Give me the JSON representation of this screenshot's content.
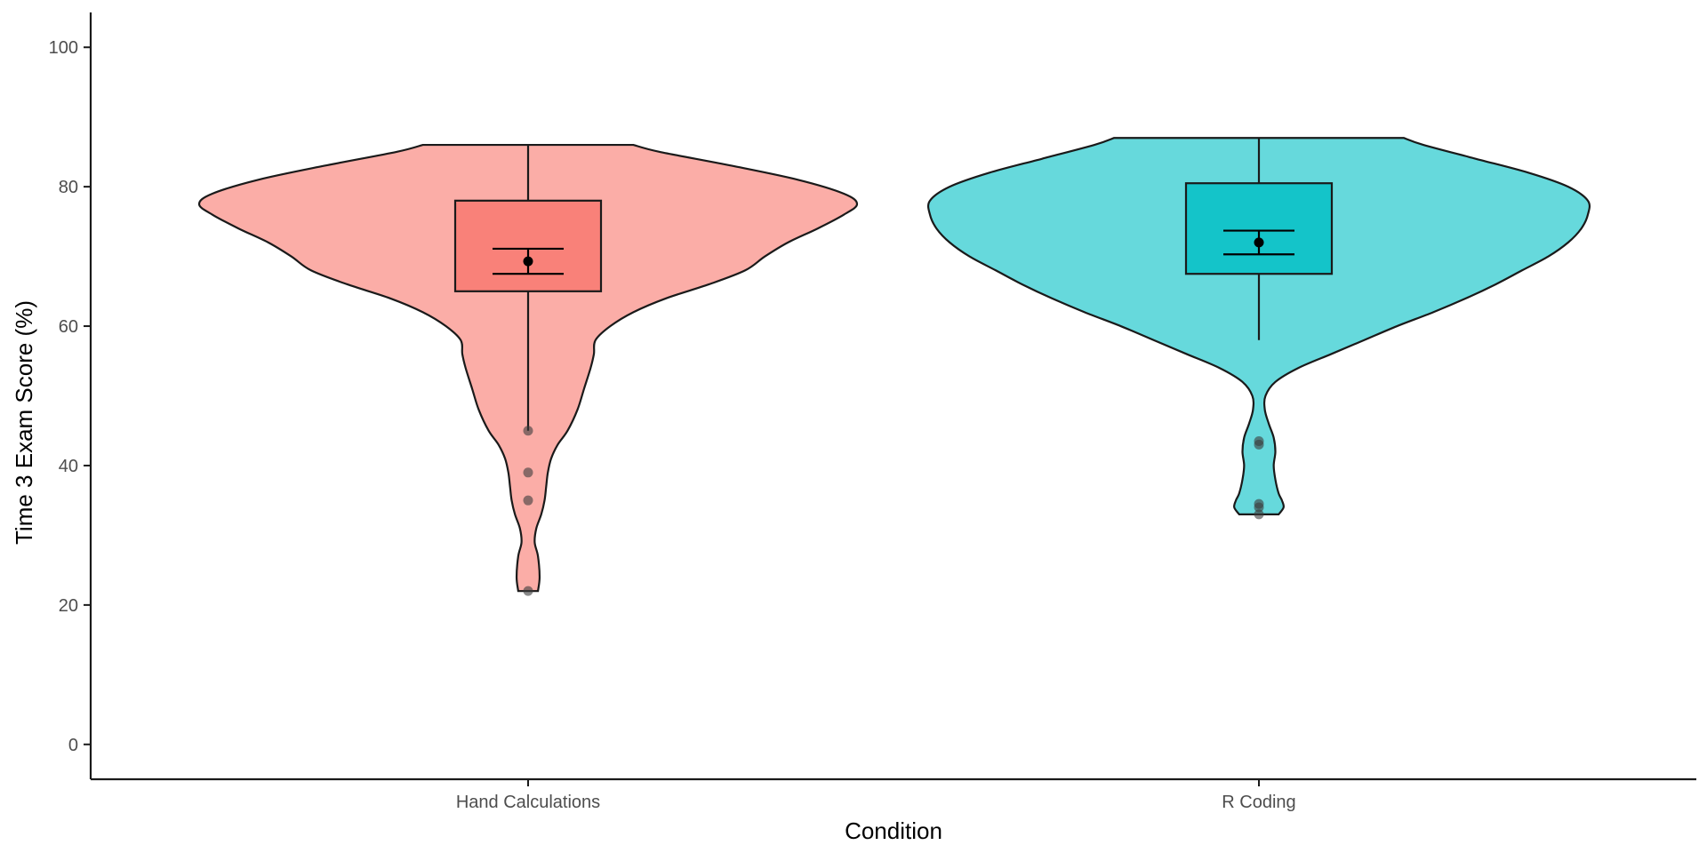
{
  "chart_data": {
    "type": "violin",
    "title": "",
    "xlabel": "Condition",
    "ylabel": "Time 3 Exam Score (%)",
    "ylim": [
      -5,
      105
    ],
    "yticks": [
      0,
      20,
      40,
      60,
      80,
      100
    ],
    "grid": false,
    "legend": "none",
    "groups": [
      {
        "category": "Hand Calculations",
        "fill": "#F8766D",
        "box": {
          "min": 45,
          "q1": 65,
          "median": 71,
          "q3": 78,
          "max": 86
        },
        "mean": 69.3,
        "mean_ci": [
          67.5,
          71.1
        ],
        "outliers": [
          45,
          39,
          35,
          22
        ],
        "density_range": [
          22,
          86
        ],
        "violin_profile": [
          [
            22,
            0.03
          ],
          [
            24,
            0.035
          ],
          [
            27,
            0.03
          ],
          [
            29,
            0.02
          ],
          [
            31,
            0.025
          ],
          [
            33,
            0.04
          ],
          [
            35,
            0.05
          ],
          [
            37,
            0.055
          ],
          [
            39,
            0.06
          ],
          [
            41,
            0.07
          ],
          [
            43,
            0.09
          ],
          [
            45,
            0.12
          ],
          [
            48,
            0.15
          ],
          [
            51,
            0.17
          ],
          [
            54,
            0.19
          ],
          [
            56,
            0.2
          ],
          [
            58,
            0.205
          ],
          [
            60,
            0.25
          ],
          [
            62,
            0.32
          ],
          [
            64,
            0.42
          ],
          [
            66,
            0.55
          ],
          [
            68,
            0.66
          ],
          [
            70,
            0.72
          ],
          [
            72,
            0.79
          ],
          [
            74,
            0.88
          ],
          [
            76,
            0.96
          ],
          [
            77.5,
            1.0
          ],
          [
            79,
            0.96
          ],
          [
            81,
            0.82
          ],
          [
            83,
            0.62
          ],
          [
            85,
            0.4
          ],
          [
            86,
            0.32
          ]
        ]
      },
      {
        "category": "R Coding",
        "fill": "#00BFC4",
        "box": {
          "min": 58,
          "q1": 67.5,
          "median": 72,
          "q3": 80.5,
          "max": 87
        },
        "mean": 72,
        "mean_ci": [
          70.3,
          73.7
        ],
        "outliers": [
          43.5,
          43,
          34.5,
          34,
          33
        ],
        "density_range": [
          33,
          87
        ],
        "violin_profile": [
          [
            33,
            0.06
          ],
          [
            34,
            0.075
          ],
          [
            35,
            0.07
          ],
          [
            36,
            0.06
          ],
          [
            38,
            0.05
          ],
          [
            40,
            0.045
          ],
          [
            42,
            0.05
          ],
          [
            44,
            0.045
          ],
          [
            46,
            0.03
          ],
          [
            48,
            0.018
          ],
          [
            50,
            0.02
          ],
          [
            52,
            0.05
          ],
          [
            54,
            0.12
          ],
          [
            56,
            0.22
          ],
          [
            58,
            0.32
          ],
          [
            60,
            0.42
          ],
          [
            62,
            0.53
          ],
          [
            64,
            0.63
          ],
          [
            66,
            0.72
          ],
          [
            68,
            0.8
          ],
          [
            70,
            0.88
          ],
          [
            72,
            0.94
          ],
          [
            74,
            0.98
          ],
          [
            76,
            1.0
          ],
          [
            78,
            1.0
          ],
          [
            80,
            0.94
          ],
          [
            82,
            0.82
          ],
          [
            84,
            0.66
          ],
          [
            86,
            0.5
          ],
          [
            87,
            0.44
          ]
        ]
      }
    ]
  }
}
